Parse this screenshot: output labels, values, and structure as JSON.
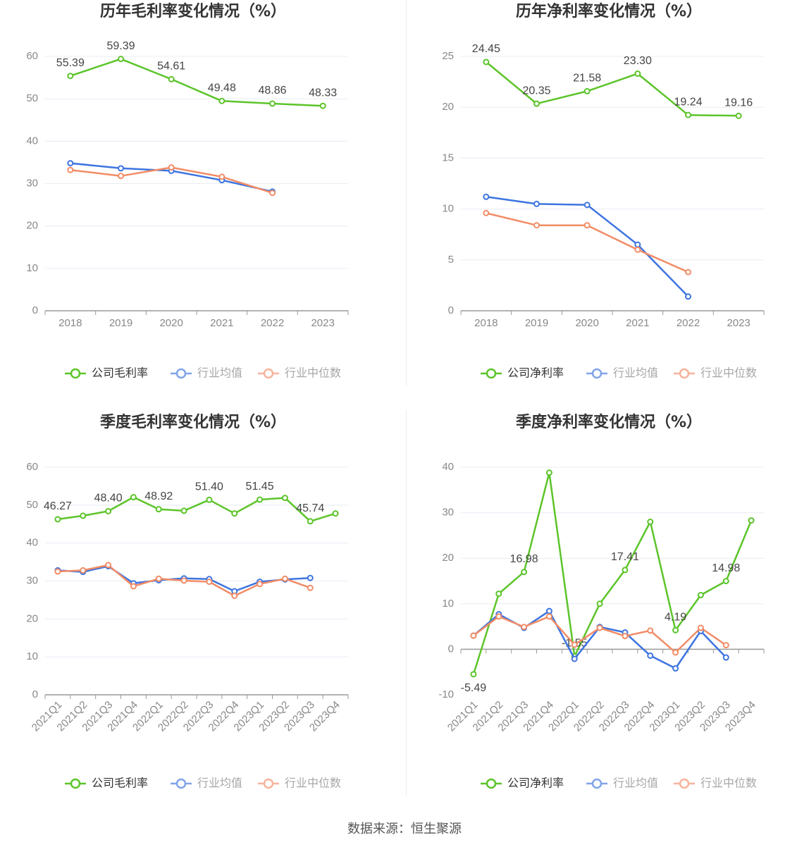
{
  "colors": {
    "company": "#5cc42a",
    "industry_avg": "#3d74e0",
    "industry_median": "#f28c66",
    "grid": "#e8ecf4",
    "axis": "#999999",
    "tick_text": "#888888",
    "value_text": "#444444",
    "title_text": "#333333"
  },
  "source": "数据来源：恒生聚源",
  "chart_data": [
    {
      "type": "line",
      "title": "历年毛利率变化情况（%）",
      "categories": [
        "2018",
        "2019",
        "2020",
        "2021",
        "2022",
        "2023"
      ],
      "ylim": [
        0,
        60
      ],
      "yticks": [
        0,
        10,
        20,
        30,
        40,
        50,
        60
      ],
      "grid": true,
      "legend_position": "bottom",
      "series": [
        {
          "name": "公司毛利率",
          "key": "company",
          "values": [
            55.39,
            59.39,
            54.61,
            49.48,
            48.86,
            48.33
          ],
          "labels": [
            "55.39",
            "59.39",
            "54.61",
            "49.48",
            "48.86",
            "48.33"
          ],
          "label_offset": [
            -18,
            -18,
            -18,
            -18,
            -18,
            -18
          ]
        },
        {
          "name": "行业均值",
          "key": "industry_avg",
          "values": [
            34.8,
            33.6,
            33.0,
            30.8,
            28.1,
            null
          ]
        },
        {
          "name": "行业中位数",
          "key": "industry_median",
          "values": [
            33.2,
            31.8,
            33.8,
            31.6,
            27.8,
            null
          ]
        }
      ]
    },
    {
      "type": "line",
      "title": "历年净利率变化情况（%）",
      "categories": [
        "2018",
        "2019",
        "2020",
        "2021",
        "2022",
        "2023"
      ],
      "ylim": [
        0,
        25
      ],
      "yticks": [
        0,
        5,
        10,
        15,
        20,
        25
      ],
      "grid": true,
      "legend_position": "bottom",
      "series": [
        {
          "name": "公司净利率",
          "key": "company",
          "values": [
            24.45,
            20.35,
            21.58,
            23.3,
            19.24,
            19.16
          ],
          "labels": [
            "24.45",
            "20.35",
            "21.58",
            "23.30",
            "19.24",
            "19.16"
          ],
          "label_offset": [
            -18,
            -18,
            -18,
            -18,
            -18,
            -18
          ]
        },
        {
          "name": "行业均值",
          "key": "industry_avg",
          "values": [
            11.2,
            10.5,
            10.4,
            6.5,
            1.4,
            null
          ]
        },
        {
          "name": "行业中位数",
          "key": "industry_median",
          "values": [
            9.6,
            8.4,
            8.4,
            6.0,
            3.8,
            null
          ]
        }
      ]
    },
    {
      "type": "line",
      "title": "季度毛利率变化情况（%）",
      "categories": [
        "2021Q1",
        "2021Q2",
        "2021Q3",
        "2021Q4",
        "2022Q1",
        "2022Q2",
        "2022Q3",
        "2022Q4",
        "2023Q1",
        "2023Q2",
        "2023Q3",
        "2023Q4"
      ],
      "ylim": [
        0,
        60
      ],
      "yticks": [
        0,
        10,
        20,
        30,
        40,
        50,
        60
      ],
      "grid": true,
      "legend_position": "bottom",
      "series": [
        {
          "name": "公司毛利率",
          "key": "company",
          "values": [
            46.27,
            47.2,
            48.4,
            52.1,
            48.92,
            48.5,
            51.4,
            47.8,
            51.45,
            51.9,
            45.74,
            47.8
          ],
          "labels": [
            "46.27",
            "",
            "48.40",
            "",
            "48.92",
            "",
            "51.40",
            "",
            "51.45",
            "",
            "45.74",
            ""
          ],
          "label_offset": [
            -18,
            0,
            -18,
            0,
            -18,
            0,
            -18,
            0,
            -18,
            0,
            -18,
            0
          ]
        },
        {
          "name": "行业均值",
          "key": "industry_avg",
          "values": [
            32.8,
            32.4,
            33.9,
            29.4,
            30.2,
            30.7,
            30.5,
            27.3,
            29.8,
            30.4,
            30.8,
            null
          ]
        },
        {
          "name": "行业中位数",
          "key": "industry_median",
          "values": [
            32.5,
            32.8,
            34.2,
            28.6,
            30.6,
            30.1,
            29.8,
            26.1,
            29.2,
            30.6,
            28.2,
            null
          ]
        }
      ]
    },
    {
      "type": "line",
      "title": "季度净利率变化情况（%）",
      "categories": [
        "2021Q1",
        "2021Q2",
        "2021Q3",
        "2021Q4",
        "2022Q1",
        "2022Q2",
        "2022Q3",
        "2022Q4",
        "2023Q1",
        "2023Q2",
        "2023Q3",
        "2023Q4"
      ],
      "ylim": [
        -10,
        40
      ],
      "yticks": [
        -10,
        0,
        10,
        20,
        30,
        40
      ],
      "grid": true,
      "legend_position": "bottom",
      "series": [
        {
          "name": "公司净利率",
          "key": "company",
          "values": [
            -5.49,
            12.2,
            16.98,
            38.8,
            -1.55,
            10.0,
            17.41,
            28.0,
            4.19,
            11.9,
            14.98,
            28.3
          ],
          "labels": [
            "-5.49",
            "",
            "16.98",
            "",
            "-1.55",
            "",
            "17.41",
            "",
            "4.19",
            "",
            "14.98",
            ""
          ],
          "label_offset": [
            20,
            0,
            -18,
            0,
            -18,
            0,
            -18,
            0,
            -18,
            0,
            -18,
            0
          ]
        },
        {
          "name": "行业均值",
          "key": "industry_avg",
          "values": [
            3.0,
            7.7,
            4.7,
            8.4,
            -2.1,
            4.9,
            3.7,
            -1.4,
            -4.2,
            4.0,
            -1.8,
            null
          ]
        },
        {
          "name": "行业中位数",
          "key": "industry_median",
          "values": [
            3.0,
            7.2,
            4.9,
            7.2,
            1.0,
            4.7,
            2.9,
            4.1,
            -0.7,
            4.7,
            0.9,
            null
          ]
        }
      ]
    }
  ]
}
